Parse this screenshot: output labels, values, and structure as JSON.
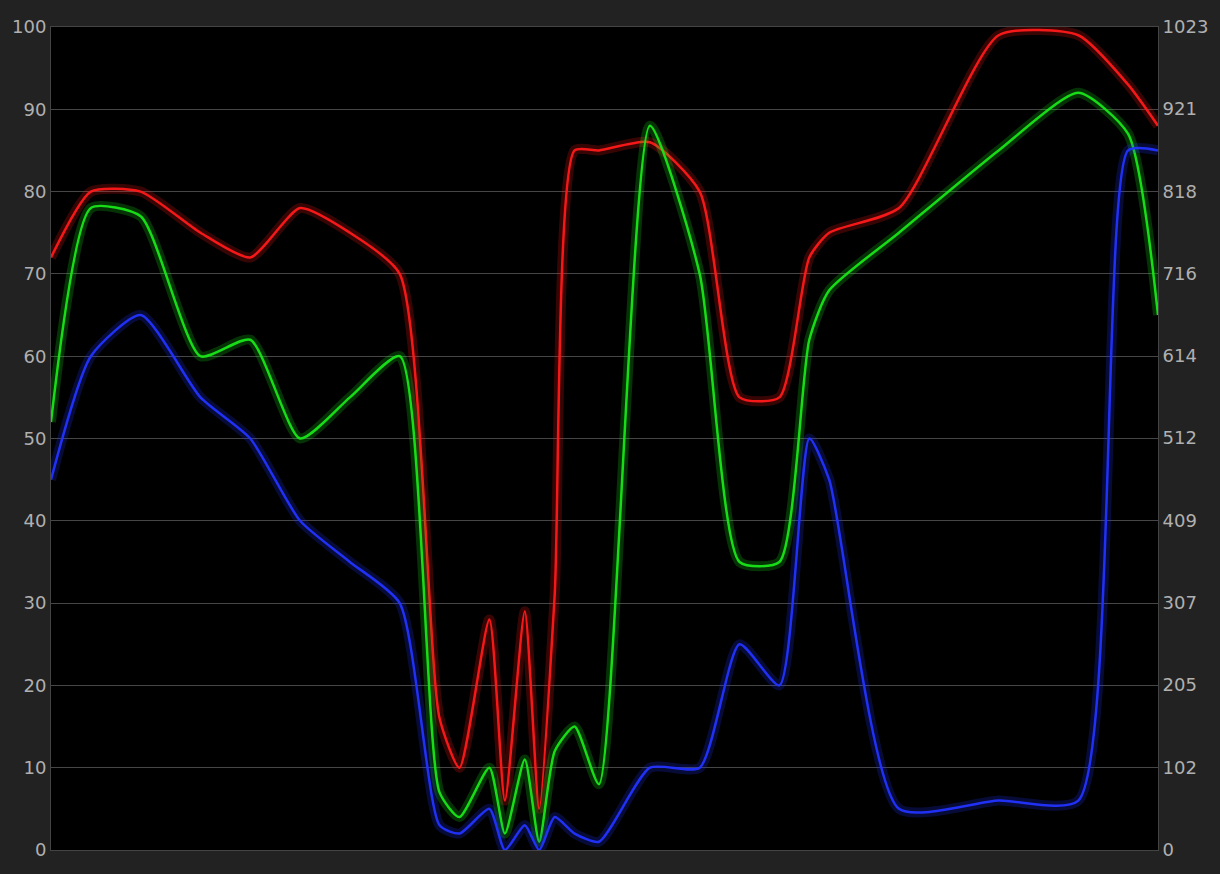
{
  "chart_data": {
    "type": "line",
    "x": [
      0,
      3.6,
      8.1,
      13.5,
      18,
      22.5,
      27,
      31.5,
      35.1,
      36.9,
      39.6,
      41,
      42.8,
      44.1,
      45.5,
      47.3,
      49.5,
      54.1,
      58.6,
      62.2,
      65.8,
      68.5,
      70.3,
      76.6,
      85.6,
      92.8,
      97.3,
      100
    ],
    "series": [
      {
        "color": "#ff1a1a",
        "values": [
          72,
          80,
          80,
          75,
          72,
          78,
          75,
          70,
          16,
          10,
          28,
          6,
          29,
          5,
          31,
          85,
          85,
          86,
          80,
          55,
          55,
          72,
          75,
          78,
          99,
          99,
          93,
          88
        ]
      },
      {
        "color": "#19e619",
        "values": [
          52,
          78,
          77,
          60,
          62,
          50,
          55,
          60,
          7,
          4,
          10,
          2,
          11,
          1,
          12,
          15,
          8,
          88,
          70,
          35,
          35,
          62,
          68,
          75,
          85,
          92,
          87,
          65
        ]
      },
      {
        "color": "#2233ff",
        "values": [
          45,
          60,
          65,
          55,
          50,
          40,
          35,
          30,
          3,
          2,
          5,
          0,
          3,
          0,
          4,
          2,
          1,
          10,
          10,
          25,
          20,
          50,
          45,
          5,
          6,
          6,
          85,
          85
        ]
      }
    ],
    "xlim": [
      0,
      100
    ],
    "ylim": [
      0,
      100
    ],
    "yticks": [
      0,
      10,
      20,
      30,
      40,
      50,
      60,
      70,
      80,
      90,
      100
    ],
    "y2lim": [
      0,
      1023
    ],
    "y2ticks": [
      0,
      102,
      205,
      307,
      409,
      512,
      614,
      716,
      818,
      921,
      1023
    ],
    "grid": true,
    "tick_labels": "y"
  }
}
